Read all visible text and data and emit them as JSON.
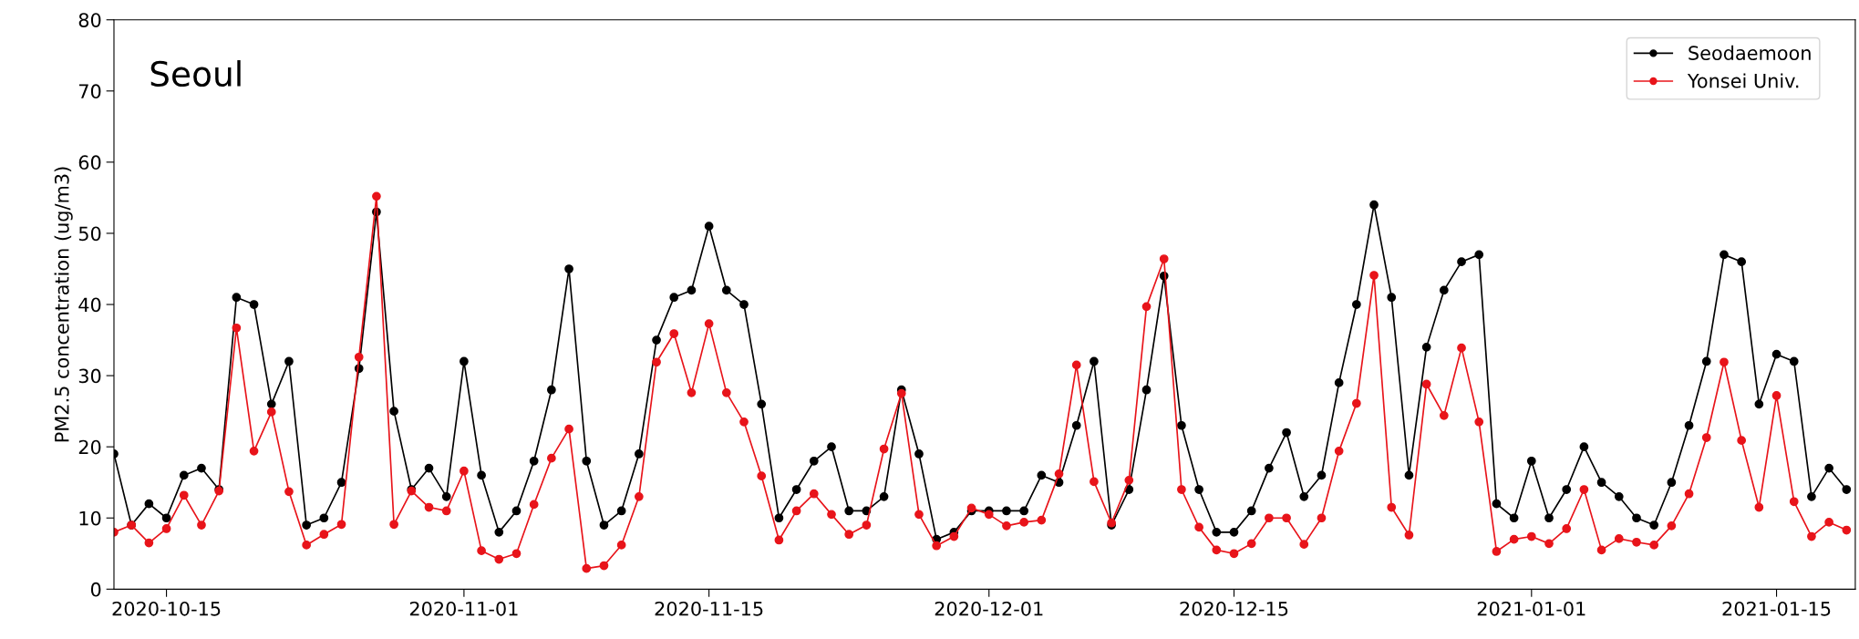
{
  "chart_data": {
    "type": "line",
    "ylabel": "PM2.5 concentration (ug/m3)",
    "annotations": [
      "Seoul"
    ],
    "x": [
      "2020-10-12",
      "2020-10-13",
      "2020-10-14",
      "2020-10-15",
      "2020-10-16",
      "2020-10-17",
      "2020-10-18",
      "2020-10-19",
      "2020-10-20",
      "2020-10-21",
      "2020-10-22",
      "2020-10-23",
      "2020-10-24",
      "2020-10-25",
      "2020-10-26",
      "2020-10-27",
      "2020-10-28",
      "2020-10-29",
      "2020-10-30",
      "2020-10-31",
      "2020-11-01",
      "2020-11-02",
      "2020-11-03",
      "2020-11-04",
      "2020-11-05",
      "2020-11-06",
      "2020-11-07",
      "2020-11-08",
      "2020-11-09",
      "2020-11-10",
      "2020-11-11",
      "2020-11-12",
      "2020-11-13",
      "2020-11-14",
      "2020-11-15",
      "2020-11-16",
      "2020-11-17",
      "2020-11-18",
      "2020-11-19",
      "2020-11-20",
      "2020-11-21",
      "2020-11-22",
      "2020-11-23",
      "2020-11-24",
      "2020-11-25",
      "2020-11-26",
      "2020-11-27",
      "2020-11-28",
      "2020-11-29",
      "2020-11-30",
      "2020-12-01",
      "2020-12-02",
      "2020-12-03",
      "2020-12-04",
      "2020-12-05",
      "2020-12-06",
      "2020-12-07",
      "2020-12-08",
      "2020-12-09",
      "2020-12-10",
      "2020-12-11",
      "2020-12-12",
      "2020-12-13",
      "2020-12-14",
      "2020-12-15",
      "2020-12-16",
      "2020-12-17",
      "2020-12-18",
      "2020-12-19",
      "2020-12-20",
      "2020-12-21",
      "2020-12-22",
      "2020-12-23",
      "2020-12-24",
      "2020-12-25",
      "2020-12-26",
      "2020-12-27",
      "2020-12-28",
      "2020-12-29",
      "2020-12-30",
      "2020-12-31",
      "2021-01-01",
      "2021-01-02",
      "2021-01-03",
      "2021-01-04",
      "2021-01-05",
      "2021-01-06",
      "2021-01-07",
      "2021-01-08",
      "2021-01-09",
      "2021-01-10",
      "2021-01-11",
      "2021-01-12",
      "2021-01-13",
      "2021-01-14",
      "2021-01-15",
      "2021-01-16",
      "2021-01-17",
      "2021-01-18",
      "2021-01-19"
    ],
    "series": [
      {
        "name": "Seodaemoon",
        "color": "#000000",
        "values": [
          19,
          9,
          12,
          10,
          16,
          17,
          14,
          41,
          40,
          26,
          32,
          9,
          10,
          15,
          31,
          53,
          25,
          14,
          17,
          13,
          32,
          16,
          8,
          11,
          18,
          28,
          45,
          18,
          9,
          11,
          19,
          35,
          41,
          42,
          51,
          42,
          40,
          26,
          10,
          14,
          18,
          20,
          11,
          11,
          13,
          28,
          19,
          7,
          8,
          11,
          11,
          11,
          11,
          16,
          15,
          23,
          32,
          9,
          14,
          28,
          44,
          23,
          14,
          8,
          8,
          11,
          17,
          22,
          13,
          16,
          29,
          40,
          54,
          41,
          16,
          34,
          42,
          46,
          47,
          12,
          10,
          18,
          10,
          14,
          20,
          15,
          13,
          10,
          9,
          15,
          23,
          32,
          47,
          46,
          26,
          33,
          32,
          13,
          17,
          14
        ]
      },
      {
        "name": "Yonsei Univ.",
        "color": "#e8141a",
        "values": [
          8,
          9,
          6.5,
          8.5,
          13.2,
          9,
          13.8,
          36.7,
          19.4,
          24.9,
          13.7,
          6.2,
          7.7,
          9.1,
          32.6,
          55.2,
          9.1,
          13.8,
          11.5,
          11,
          16.6,
          5.4,
          4.2,
          5,
          11.9,
          18.4,
          22.5,
          2.9,
          3.3,
          6.2,
          13,
          31.9,
          35.9,
          27.6,
          37.3,
          27.6,
          23.5,
          15.9,
          6.9,
          11,
          13.4,
          10.5,
          7.7,
          9,
          19.7,
          27.5,
          10.5,
          6.1,
          7.4,
          11.4,
          10.5,
          8.9,
          9.4,
          9.7,
          16.2,
          31.5,
          15.1,
          9.3,
          15.3,
          39.7,
          46.4,
          14,
          8.7,
          5.5,
          5,
          6.4,
          10,
          10,
          6.3,
          10,
          19.4,
          26.1,
          44.1,
          11.5,
          7.6,
          28.8,
          24.4,
          33.9,
          23.5,
          5.3,
          7,
          7.4,
          6.4,
          8.5,
          14,
          5.5,
          7.1,
          6.6,
          6.2,
          8.9,
          13.4,
          21.3,
          31.9,
          20.9,
          11.5,
          27.2,
          12.3,
          7.4,
          9.4,
          8.3
        ]
      }
    ],
    "xlim": [
      "2020-10-12",
      "2021-01-19T12:00"
    ],
    "xticks": [
      {
        "value": "2020-10-15",
        "label": "2020-10-15"
      },
      {
        "value": "2020-11-01",
        "label": "2020-11-01"
      },
      {
        "value": "2020-11-15",
        "label": "2020-11-15"
      },
      {
        "value": "2020-12-01",
        "label": "2020-12-01"
      },
      {
        "value": "2020-12-15",
        "label": "2020-12-15"
      },
      {
        "value": "2021-01-01",
        "label": "2021-01-01"
      },
      {
        "value": "2021-01-15",
        "label": "2021-01-15"
      }
    ],
    "ylim": [
      0,
      80
    ],
    "yticks": [
      0,
      10,
      20,
      30,
      40,
      50,
      60,
      70,
      80
    ],
    "legend": "top right",
    "marker": "circle",
    "line_style": "solid"
  }
}
